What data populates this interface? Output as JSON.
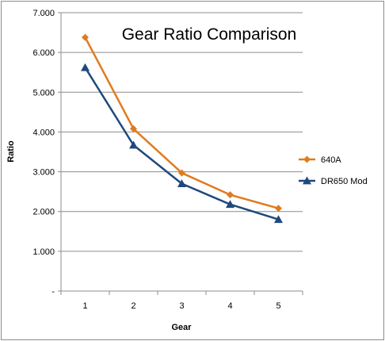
{
  "chart_data": {
    "type": "line",
    "title": "Gear Ratio Comparison",
    "xlabel": "Gear",
    "ylabel": "Ratio",
    "categories": [
      "1",
      "2",
      "3",
      "4",
      "5"
    ],
    "ylim": [
      0,
      7
    ],
    "y_ticks": [
      0,
      1,
      2,
      3,
      4,
      5,
      6,
      7
    ],
    "y_tick_labels": [
      "-",
      "1.000",
      "2.000",
      "3.000",
      "4.000",
      "5.000",
      "6.000",
      "7.000"
    ],
    "grid": true,
    "legend_position": "right",
    "series": [
      {
        "name": "640A",
        "values": [
          6.38,
          4.08,
          2.97,
          2.42,
          2.08
        ],
        "color": "#E07B1F",
        "marker": "diamond"
      },
      {
        "name": "DR650 Mod",
        "values": [
          5.62,
          3.67,
          2.7,
          2.18,
          1.8
        ],
        "color": "#1F497D",
        "marker": "triangle"
      }
    ]
  }
}
